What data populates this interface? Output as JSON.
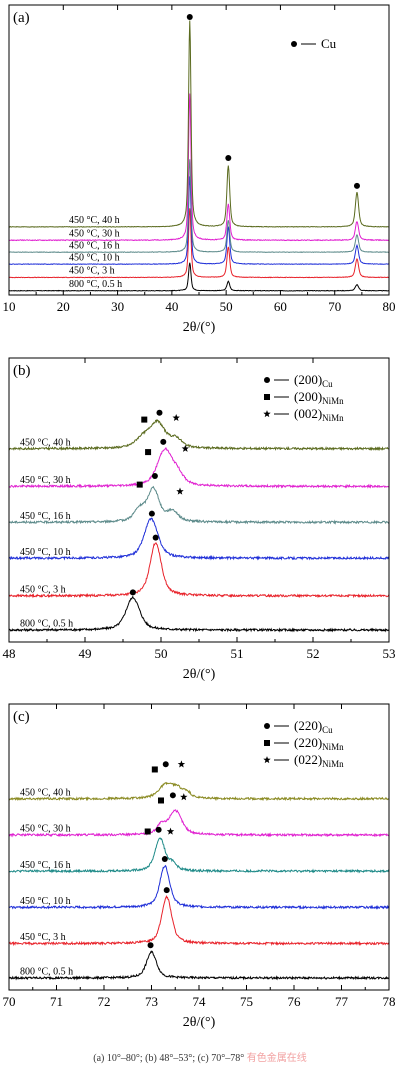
{
  "panels": [
    {
      "id": "a",
      "panel_label": "(a)",
      "legend": [
        {
          "marker": "circle",
          "text": "Cu",
          "sub": ""
        }
      ]
    },
    {
      "id": "b",
      "panel_label": "(b)",
      "legend": [
        {
          "marker": "circle",
          "text": "(200)",
          "sub": "Cu"
        },
        {
          "marker": "square",
          "text": "(200)",
          "sub": "NiMn"
        },
        {
          "marker": "star",
          "text": "(002)",
          "sub": "NiMn"
        }
      ]
    },
    {
      "id": "c",
      "panel_label": "(c)",
      "legend": [
        {
          "marker": "circle",
          "text": "(220)",
          "sub": "Cu"
        },
        {
          "marker": "square",
          "text": "(220)",
          "sub": "NiMn"
        },
        {
          "marker": "star",
          "text": "(022)",
          "sub": "NiMn"
        }
      ]
    }
  ],
  "caption": "(a) 10°–80°; (b) 48°–53°; (c) 70°–78°",
  "watermark": "有色金属在线",
  "chart_data": [
    {
      "type": "line",
      "title": "",
      "xlabel": "2θ/(°)",
      "ylabel": "",
      "xlim": [
        10,
        80
      ],
      "xticks": [
        10,
        20,
        30,
        40,
        50,
        60,
        70,
        80
      ],
      "grid": false,
      "legend_position": "top-right",
      "series": [
        {
          "name": "800 °C, 0.5 h",
          "color": "#000000",
          "offset": 0,
          "baseline": 0.02,
          "noise": 0.02,
          "peaks": [
            [
              43.3,
              0.3,
              2.1
            ],
            [
              50.4,
              0.35,
              0.7
            ],
            [
              74.1,
              0.4,
              0.45
            ]
          ]
        },
        {
          "name": "450 °C, 3 h",
          "color": "#e8222a",
          "offset": 1.0,
          "baseline": 0.02,
          "noise": 0.02,
          "peaks": [
            [
              43.3,
              0.3,
              5.2
            ],
            [
              50.4,
              0.35,
              2.3
            ],
            [
              74.1,
              0.4,
              1.4
            ]
          ]
        },
        {
          "name": "450 °C, 10 h",
          "color": "#1f2fd8",
          "offset": 2.0,
          "baseline": 0.02,
          "noise": 0.02,
          "peaks": [
            [
              43.3,
              0.3,
              6.6
            ],
            [
              50.4,
              0.35,
              2.8
            ],
            [
              74.1,
              0.4,
              1.4
            ]
          ]
        },
        {
          "name": "450 °C, 16 h",
          "color": "#5c8a8a",
          "offset": 2.9,
          "baseline": 0.02,
          "noise": 0.02,
          "peaks": [
            [
              43.3,
              0.3,
              7.0
            ],
            [
              50.4,
              0.35,
              2.4
            ],
            [
              74.1,
              0.4,
              1.3
            ]
          ]
        },
        {
          "name": "450 °C, 30 h",
          "color": "#e020d0",
          "offset": 3.8,
          "baseline": 0.02,
          "noise": 0.03,
          "peaks": [
            [
              43.3,
              0.3,
              11.0
            ],
            [
              50.4,
              0.35,
              2.7
            ],
            [
              74.1,
              0.4,
              1.4
            ]
          ]
        },
        {
          "name": "450 °C, 40 h",
          "color": "#5a6a1e",
          "offset": 4.8,
          "baseline": 0.02,
          "noise": 0.02,
          "peaks": [
            [
              43.3,
              0.3,
              15.5
            ],
            [
              50.4,
              0.35,
              4.6
            ],
            [
              74.1,
              0.4,
              2.6
            ]
          ]
        }
      ],
      "annotations": [
        {
          "marker": "circle",
          "x": 43.3,
          "y": 20.6
        },
        {
          "marker": "circle",
          "x": 50.4,
          "y": 10.0
        },
        {
          "marker": "circle",
          "x": 74.1,
          "y": 7.9
        }
      ]
    },
    {
      "type": "line",
      "title": "",
      "xlabel": "2θ/(°)",
      "ylabel": "",
      "xlim": [
        48,
        53
      ],
      "xticks": [
        48,
        49,
        50,
        51,
        52,
        53
      ],
      "grid": false,
      "legend_position": "top-right",
      "series": [
        {
          "name": "800 °C, 0.5 h",
          "color": "#000000",
          "offset": 0,
          "baseline": 0.05,
          "noise": 0.03,
          "peaks": [
            [
              49.63,
              0.12,
              0.95
            ]
          ]
        },
        {
          "name": "450 °C, 3 h",
          "color": "#e8222a",
          "offset": 1.0,
          "baseline": 0.05,
          "noise": 0.03,
          "peaks": [
            [
              49.93,
              0.1,
              1.55
            ]
          ]
        },
        {
          "name": "450 °C, 10 h",
          "color": "#1f2fd8",
          "offset": 2.1,
          "baseline": 0.05,
          "noise": 0.03,
          "peaks": [
            [
              49.87,
              0.12,
              1.15
            ]
          ]
        },
        {
          "name": "450 °C, 16 h",
          "color": "#5c8a8a",
          "offset": 3.15,
          "baseline": 0.05,
          "noise": 0.03,
          "peaks": [
            [
              49.9,
              0.1,
              0.95
            ],
            [
              49.72,
              0.1,
              0.35
            ],
            [
              50.15,
              0.1,
              0.3
            ]
          ]
        },
        {
          "name": "450 °C, 30 h",
          "color": "#e020d0",
          "offset": 4.2,
          "baseline": 0.05,
          "noise": 0.03,
          "peaks": [
            [
              50.05,
              0.13,
              1.05
            ],
            [
              50.22,
              0.1,
              0.3
            ]
          ]
        },
        {
          "name": "450 °C, 40 h",
          "color": "#5a6a1e",
          "offset": 5.3,
          "baseline": 0.05,
          "noise": 0.03,
          "peaks": [
            [
              49.95,
              0.14,
              0.75
            ],
            [
              49.75,
              0.12,
              0.25
            ],
            [
              50.2,
              0.1,
              0.25
            ]
          ]
        }
      ],
      "annotations": [
        {
          "marker": "circle",
          "x": 49.63,
          "y": 1.15
        },
        {
          "marker": "circle",
          "x": 49.93,
          "y": 2.75
        },
        {
          "marker": "circle",
          "x": 49.88,
          "y": 3.45
        },
        {
          "marker": "square",
          "x": 49.72,
          "y": 4.3
        },
        {
          "marker": "circle",
          "x": 49.92,
          "y": 4.55
        },
        {
          "marker": "star",
          "x": 50.25,
          "y": 4.1
        },
        {
          "marker": "square",
          "x": 49.83,
          "y": 5.25
        },
        {
          "marker": "circle",
          "x": 50.03,
          "y": 5.55
        },
        {
          "marker": "star",
          "x": 50.32,
          "y": 5.35
        },
        {
          "marker": "square",
          "x": 49.78,
          "y": 6.2
        },
        {
          "marker": "circle",
          "x": 49.98,
          "y": 6.4
        },
        {
          "marker": "star",
          "x": 50.2,
          "y": 6.25
        }
      ]
    },
    {
      "type": "line",
      "title": "",
      "xlabel": "2θ/(°)",
      "ylabel": "",
      "xlim": [
        70,
        78
      ],
      "xticks": [
        70,
        71,
        72,
        73,
        74,
        75,
        76,
        77,
        78
      ],
      "grid": false,
      "legend_position": "top-right",
      "series": [
        {
          "name": "800 °C, 0.5 h",
          "color": "#000000",
          "offset": 0,
          "baseline": 0.05,
          "noise": 0.03,
          "peaks": [
            [
              73.0,
              0.14,
              0.75
            ]
          ]
        },
        {
          "name": "450 °C, 3 h",
          "color": "#e8222a",
          "offset": 1.0,
          "baseline": 0.05,
          "noise": 0.03,
          "peaks": [
            [
              73.32,
              0.14,
              1.35
            ]
          ]
        },
        {
          "name": "450 °C, 10 h",
          "color": "#1f2fd8",
          "offset": 2.05,
          "baseline": 0.05,
          "noise": 0.03,
          "peaks": [
            [
              73.28,
              0.14,
              1.2
            ]
          ]
        },
        {
          "name": "450 °C, 16 h",
          "color": "#1e8a88",
          "offset": 3.1,
          "baseline": 0.05,
          "noise": 0.03,
          "peaks": [
            [
              73.18,
              0.14,
              0.95
            ],
            [
              73.45,
              0.1,
              0.2
            ]
          ]
        },
        {
          "name": "450 °C, 30 h",
          "color": "#e020d0",
          "offset": 4.15,
          "baseline": 0.05,
          "noise": 0.03,
          "peaks": [
            [
              73.5,
              0.18,
              0.7
            ],
            [
              73.2,
              0.12,
              0.25
            ]
          ]
        },
        {
          "name": "450 °C, 40 h",
          "color": "#8a8a22",
          "offset": 5.2,
          "baseline": 0.05,
          "noise": 0.03,
          "peaks": [
            [
              73.3,
              0.2,
              0.4
            ],
            [
              73.55,
              0.15,
              0.25
            ],
            [
              73.75,
              0.1,
              0.15
            ]
          ]
        }
      ],
      "annotations": [
        {
          "marker": "circle",
          "x": 72.98,
          "y": 1.0
        },
        {
          "marker": "circle",
          "x": 73.32,
          "y": 2.6
        },
        {
          "marker": "circle",
          "x": 73.28,
          "y": 3.5
        },
        {
          "marker": "square",
          "x": 72.92,
          "y": 4.3
        },
        {
          "marker": "circle",
          "x": 73.15,
          "y": 4.35
        },
        {
          "marker": "star",
          "x": 73.4,
          "y": 4.3
        },
        {
          "marker": "square",
          "x": 73.2,
          "y": 5.2
        },
        {
          "marker": "circle",
          "x": 73.45,
          "y": 5.35
        },
        {
          "marker": "star",
          "x": 73.68,
          "y": 5.3
        },
        {
          "marker": "square",
          "x": 73.07,
          "y": 6.1
        },
        {
          "marker": "circle",
          "x": 73.3,
          "y": 6.25
        },
        {
          "marker": "star",
          "x": 73.63,
          "y": 6.25
        }
      ]
    }
  ]
}
